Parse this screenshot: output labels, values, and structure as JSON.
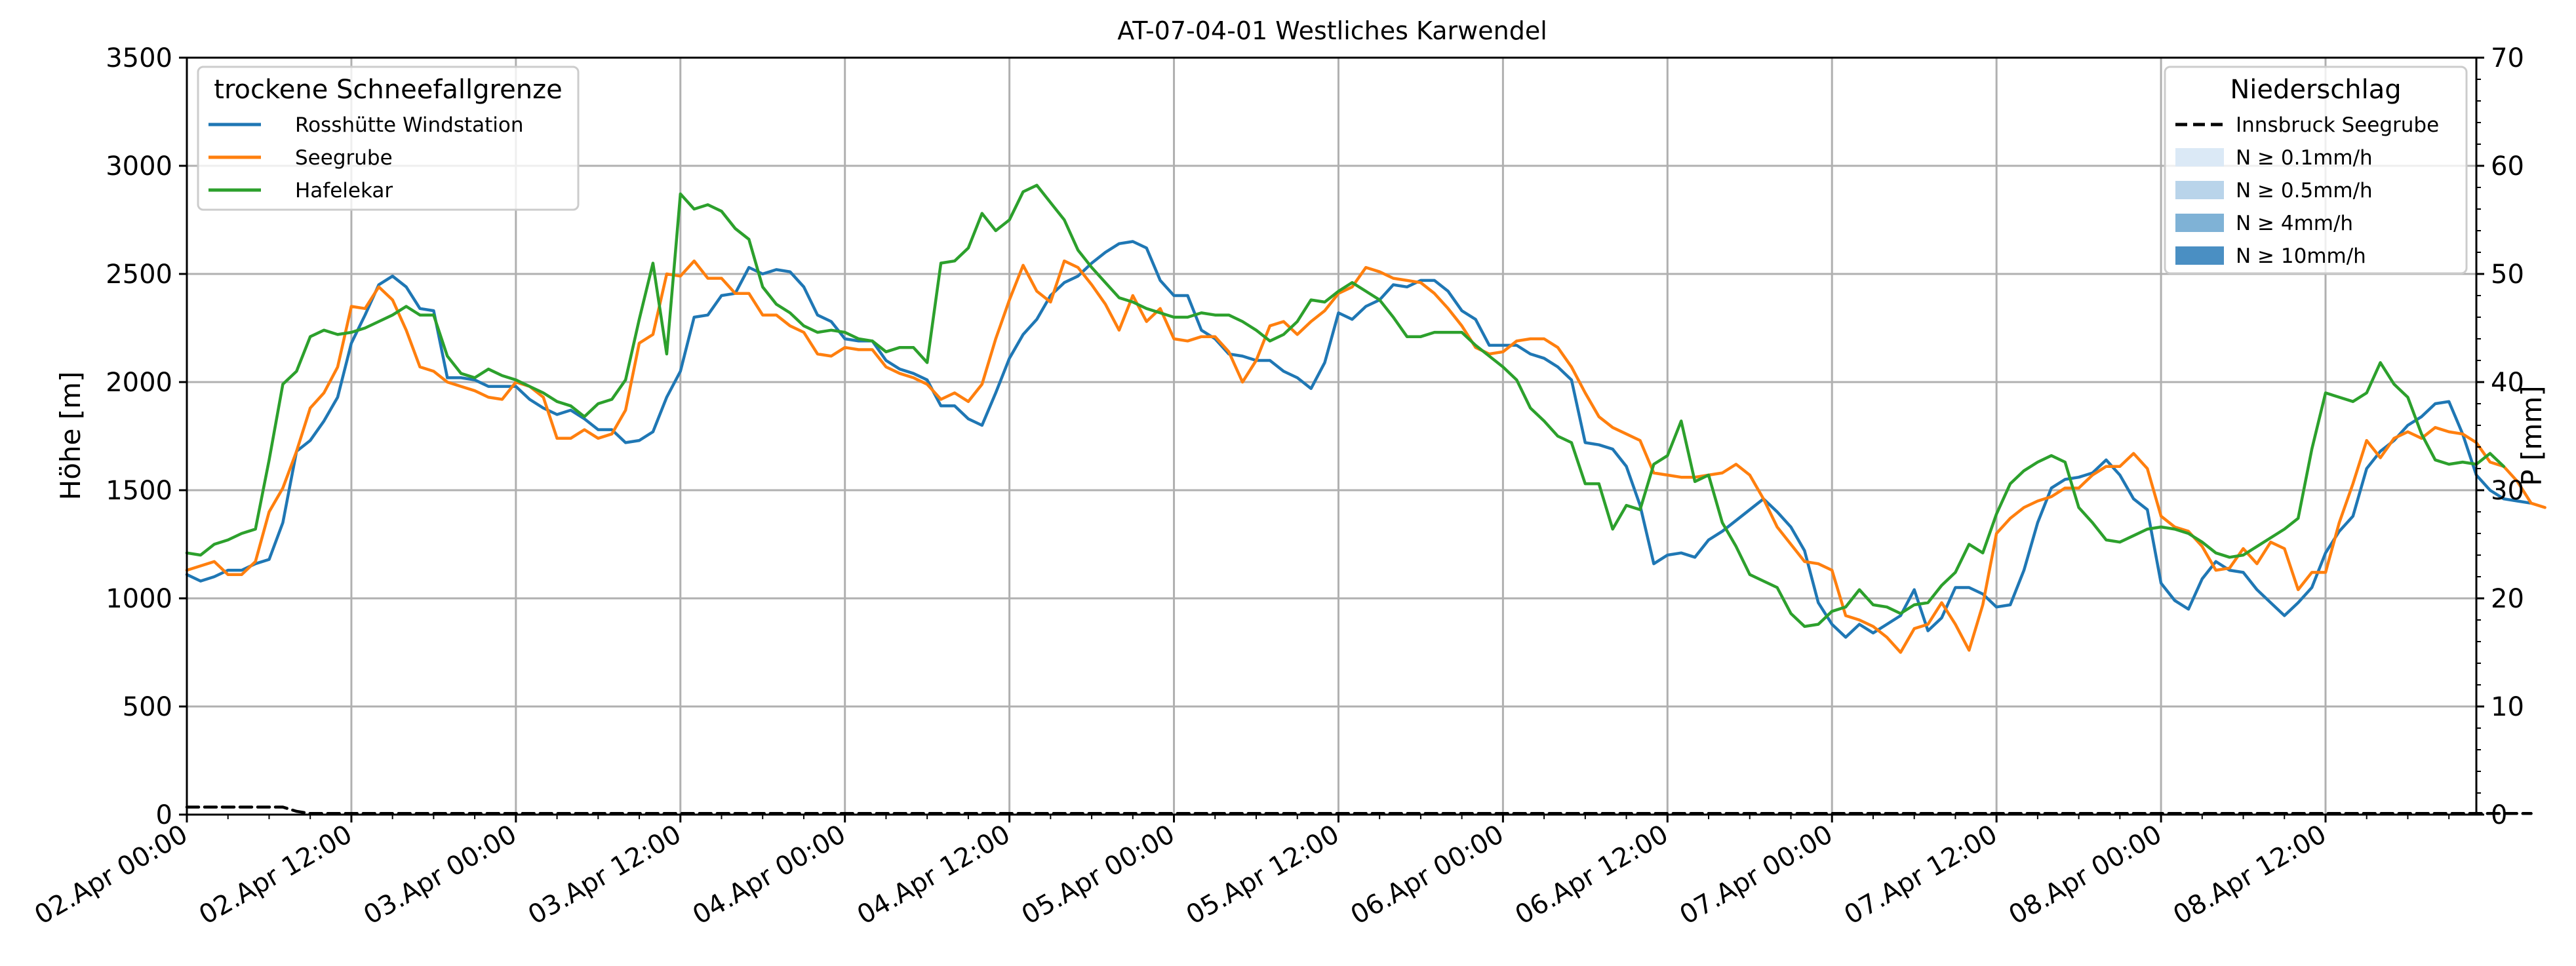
{
  "chart_data": {
    "type": "line",
    "title": "AT-07-04-01 Westliches Karwendel",
    "ylabel": "Höhe [m]",
    "y2label": "P [mm]",
    "ylim": [
      0,
      3500
    ],
    "y2lim": [
      0,
      70
    ],
    "yticks": [
      0,
      500,
      1000,
      1500,
      2000,
      2500,
      3000,
      3500
    ],
    "y2ticks": [
      0,
      10,
      20,
      30,
      40,
      50,
      60,
      70
    ],
    "xlim_hours": [
      0,
      167
    ],
    "x_hour_start": "02.Apr 00:00",
    "x_step_hours": 1,
    "xticks": [
      "02.Apr 00:00",
      "02.Apr 12:00",
      "03.Apr 00:00",
      "03.Apr 12:00",
      "04.Apr 00:00",
      "04.Apr 12:00",
      "05.Apr 00:00",
      "05.Apr 12:00",
      "06.Apr 00:00",
      "06.Apr 12:00",
      "07.Apr 00:00",
      "07.Apr 12:00",
      "08.Apr 00:00",
      "08.Apr 12:00"
    ],
    "grid": true,
    "legend_left": {
      "title": "trockene Schneefallgrenze",
      "placement": "top-left"
    },
    "legend_right": {
      "title": "Niederschlag",
      "placement": "top-right",
      "entries": [
        {
          "label": "Innsbruck Seegrube",
          "style": "dashed",
          "color": "#000000"
        },
        {
          "label": "N ≥ 0.1mm/h",
          "style": "patch",
          "color": "#dbe9f6"
        },
        {
          "label": "N ≥ 0.5mm/h",
          "style": "patch",
          "color": "#b9d4ea"
        },
        {
          "label": "N ≥ 4mm/h",
          "style": "patch",
          "color": "#7fb2d6"
        },
        {
          "label": "N ≥ 10mm/h",
          "style": "patch",
          "color": "#4a8fc3"
        }
      ]
    },
    "series": [
      {
        "name": "Rosshütte Windstation",
        "color": "#1f77b4",
        "axis": "left",
        "values": [
          1110,
          1080,
          1100,
          1130,
          1130,
          1160,
          1180,
          1350,
          1680,
          1730,
          1820,
          1930,
          2180,
          2310,
          2450,
          2490,
          2440,
          2340,
          2330,
          2020,
          2020,
          2010,
          1980,
          1980,
          1980,
          1920,
          1880,
          1850,
          1870,
          1830,
          1780,
          1780,
          1720,
          1730,
          1770,
          1930,
          2050,
          2300,
          2310,
          2400,
          2410,
          2530,
          2500,
          2520,
          2510,
          2440,
          2310,
          2280,
          2200,
          2190,
          2190,
          2100,
          2060,
          2040,
          2010,
          1890,
          1890,
          1830,
          1800,
          1950,
          2110,
          2220,
          2290,
          2400,
          2460,
          2490,
          2550,
          2600,
          2640,
          2650,
          2620,
          2470,
          2400,
          2400,
          2240,
          2200,
          2130,
          2120,
          2100,
          2100,
          2050,
          2020,
          1970,
          2090,
          2320,
          2290,
          2350,
          2380,
          2450,
          2440,
          2470,
          2470,
          2420,
          2330,
          2290,
          2170,
          2170,
          2170,
          2130,
          2110,
          2070,
          2010,
          1720,
          1710,
          1690,
          1610,
          1430,
          1160,
          1200,
          1210,
          1190,
          1270,
          1310,
          1360,
          1410,
          1460,
          1400,
          1330,
          1220,
          980,
          880,
          820,
          880,
          840,
          880,
          920,
          1040,
          850,
          910,
          1050,
          1050,
          1020,
          960,
          970,
          1130,
          1350,
          1510,
          1550,
          1560,
          1580,
          1640,
          1570,
          1460,
          1410,
          1070,
          990,
          950,
          1090,
          1170,
          1130,
          1120,
          1040,
          980,
          920,
          980,
          1050,
          1210,
          1310,
          1380,
          1600,
          1680,
          1730,
          1800,
          1840,
          1900,
          1910,
          1760,
          1570,
          1500,
          1460,
          1450,
          1440
        ]
      },
      {
        "name": "Seegrube",
        "color": "#ff7f0e",
        "axis": "left",
        "values": [
          1130,
          1150,
          1170,
          1110,
          1110,
          1170,
          1400,
          1510,
          1680,
          1880,
          1950,
          2070,
          2350,
          2340,
          2440,
          2380,
          2240,
          2070,
          2050,
          2000,
          1980,
          1960,
          1930,
          1920,
          2000,
          1980,
          1930,
          1740,
          1740,
          1780,
          1740,
          1760,
          1870,
          2180,
          2220,
          2500,
          2490,
          2560,
          2480,
          2480,
          2410,
          2410,
          2310,
          2310,
          2260,
          2230,
          2130,
          2120,
          2160,
          2150,
          2150,
          2070,
          2040,
          2020,
          1990,
          1920,
          1950,
          1910,
          1990,
          2200,
          2380,
          2540,
          2420,
          2370,
          2560,
          2530,
          2450,
          2360,
          2240,
          2400,
          2280,
          2340,
          2200,
          2190,
          2210,
          2210,
          2140,
          2000,
          2100,
          2260,
          2280,
          2220,
          2280,
          2330,
          2410,
          2440,
          2530,
          2510,
          2480,
          2470,
          2460,
          2410,
          2340,
          2260,
          2160,
          2130,
          2140,
          2190,
          2200,
          2200,
          2160,
          2070,
          1950,
          1840,
          1790,
          1760,
          1730,
          1580,
          1570,
          1560,
          1560,
          1570,
          1580,
          1620,
          1570,
          1460,
          1330,
          1250,
          1170,
          1160,
          1130,
          920,
          900,
          870,
          820,
          750,
          860,
          880,
          980,
          880,
          760,
          970,
          1300,
          1370,
          1420,
          1450,
          1470,
          1510,
          1510,
          1570,
          1610,
          1610,
          1670,
          1600,
          1380,
          1330,
          1310,
          1240,
          1130,
          1140,
          1230,
          1160,
          1260,
          1230,
          1040,
          1120,
          1120,
          1350,
          1530,
          1730,
          1650,
          1740,
          1770,
          1740,
          1790,
          1770,
          1760,
          1720,
          1630,
          1610,
          1540,
          1440,
          1420
        ]
      },
      {
        "name": "Hafelekar",
        "color": "#2ca02c",
        "axis": "left",
        "values": [
          1210,
          1200,
          1250,
          1270,
          1300,
          1320,
          1640,
          1990,
          2050,
          2210,
          2240,
          2220,
          2230,
          2250,
          2280,
          2310,
          2350,
          2310,
          2310,
          2120,
          2040,
          2020,
          2060,
          2030,
          2010,
          1980,
          1950,
          1910,
          1890,
          1840,
          1900,
          1920,
          2010,
          2290,
          2550,
          2130,
          2870,
          2800,
          2820,
          2790,
          2710,
          2660,
          2440,
          2360,
          2320,
          2260,
          2230,
          2240,
          2230,
          2200,
          2190,
          2140,
          2160,
          2160,
          2090,
          2550,
          2560,
          2620,
          2780,
          2700,
          2750,
          2880,
          2910,
          2830,
          2750,
          2610,
          2530,
          2460,
          2390,
          2370,
          2340,
          2320,
          2300,
          2300,
          2320,
          2310,
          2310,
          2280,
          2240,
          2190,
          2220,
          2280,
          2380,
          2370,
          2420,
          2460,
          2420,
          2380,
          2300,
          2210,
          2210,
          2230,
          2230,
          2230,
          2170,
          2120,
          2070,
          2010,
          1880,
          1820,
          1750,
          1720,
          1530,
          1530,
          1320,
          1430,
          1410,
          1620,
          1660,
          1820,
          1540,
          1570,
          1350,
          1240,
          1110,
          1080,
          1050,
          930,
          870,
          880,
          940,
          960,
          1040,
          970,
          960,
          930,
          970,
          980,
          1060,
          1120,
          1250,
          1210,
          1390,
          1530,
          1590,
          1630,
          1660,
          1630,
          1420,
          1350,
          1270,
          1260,
          1290,
          1320,
          1330,
          1320,
          1300,
          1260,
          1210,
          1190,
          1200,
          1240,
          1280,
          1320,
          1370,
          1690,
          1950,
          1930,
          1910,
          1950,
          2090,
          1990,
          1930,
          1760,
          1640,
          1620,
          1630,
          1620,
          1670,
          1610
        ]
      },
      {
        "name": "Innsbruck Seegrube",
        "color": "#000000",
        "axis": "right",
        "style": "dashed",
        "values": [
          0.7,
          0.7,
          0.7,
          0.7,
          0.7,
          0.7,
          0.7,
          0.7,
          0.3,
          0.1,
          0.1,
          0.1,
          0.1,
          0.1,
          0.1,
          0.1,
          0.1,
          0.1,
          0.1,
          0.1,
          0.1,
          0.1,
          0.1,
          0.1,
          0.1,
          0.1,
          0.1,
          0.1,
          0.1,
          0.1,
          0.1,
          0.1,
          0.1,
          0.1,
          0.1,
          0.1,
          0.1,
          0.1,
          0.1,
          0.1,
          0.1,
          0.1,
          0.1,
          0.1,
          0.1,
          0.1,
          0.1,
          0.1,
          0.1,
          0.1,
          0.1,
          0.1,
          0.1,
          0.1,
          0.1,
          0.1,
          0.1,
          0.1,
          0.1,
          0.1,
          0.1,
          0.1,
          0.1,
          0.1,
          0.1,
          0.1,
          0.1,
          0.1,
          0.1,
          0.1,
          0.1,
          0.1,
          0.1,
          0.1,
          0.1,
          0.1,
          0.1,
          0.1,
          0.1,
          0.1,
          0.1,
          0.1,
          0.1,
          0.1,
          0.1,
          0.1,
          0.1,
          0.1,
          0.1,
          0.1,
          0.1,
          0.1,
          0.1,
          0.1,
          0.1,
          0.1,
          0.1,
          0.1,
          0.1,
          0.1,
          0.1,
          0.1,
          0.1,
          0.1,
          0.1,
          0.1,
          0.1,
          0.1,
          0.1,
          0.1,
          0.1,
          0.1,
          0.1,
          0.1,
          0.1,
          0.1,
          0.1,
          0.1,
          0.1,
          0.1,
          0.1,
          0.1,
          0.1,
          0.1,
          0.1,
          0.1,
          0.1,
          0.1,
          0.1,
          0.1,
          0.1,
          0.1,
          0.1,
          0.1,
          0.1,
          0.1,
          0.1,
          0.1,
          0.1,
          0.1,
          0.1,
          0.1,
          0.1,
          0.1,
          0.1,
          0.1,
          0.1,
          0.1,
          0.1,
          0.1,
          0.1,
          0.1,
          0.1,
          0.1,
          0.1,
          0.1,
          0.1,
          0.1,
          0.1,
          0.1,
          0.1,
          0.1,
          0.1,
          0.1,
          0.1,
          0.1,
          0.1,
          0.1,
          0.1,
          0.1,
          0.1,
          0.1
        ]
      }
    ]
  }
}
